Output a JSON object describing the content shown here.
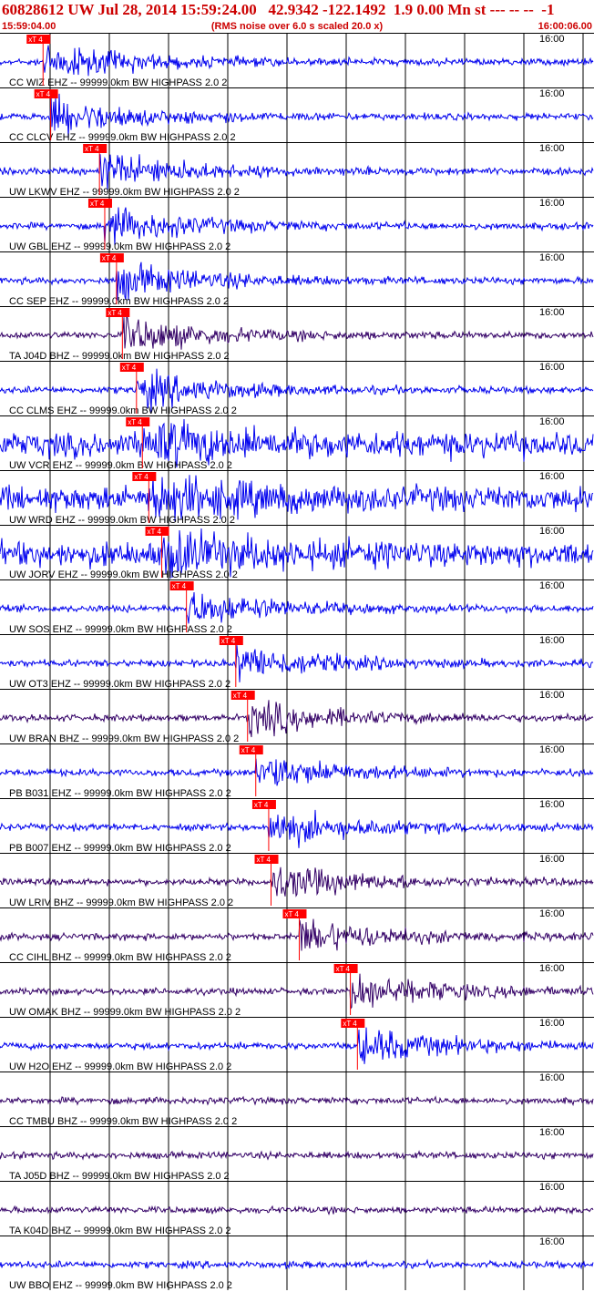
{
  "header": {
    "title": "60828612 UW Jul 28, 2014 15:59:24.00   42.9342 -122.1492  1.9 0.00 Mn st --- -- --  -1",
    "start_time": "15:59:04.00",
    "note": "(RMS noise over 6.0 s scaled 20.0 x)",
    "end_time": "16:00:06.00"
  },
  "colors": {
    "header_text": "#cc0000",
    "trace_blue": "#0000ee",
    "trace_dark": "#330066",
    "pick": "#ff0000",
    "grid": "#000000"
  },
  "pick_label": "xT 4",
  "tick_label": "16:00",
  "traces": [
    {
      "label": "CC WIZ EHZ -- 99999.0km BW  HIGHPASS  2.0  2",
      "color": "blue",
      "pick": 0.5
    },
    {
      "label": "CC CLCV EHZ -- 99999.0km BW  HIGHPASS  2.0  2",
      "color": "blue",
      "pick": 0.63
    },
    {
      "label": "UW LKWV EHZ -- 99999.0km BW  HIGHPASS  2.0  2",
      "color": "blue",
      "pick": 1.46
    },
    {
      "label": "UW GBL EHZ -- 99999.0km BW  HIGHPASS  2.0  2",
      "color": "blue",
      "pick": 1.55
    },
    {
      "label": "CC SEP EHZ -- 99999.0km BW  HIGHPASS  2.0  2",
      "color": "blue",
      "pick": 1.75
    },
    {
      "label": "TA J04D BHZ -- 99999.0km BW  HIGHPASS  2.0  2",
      "color": "dark",
      "pick": 1.85
    },
    {
      "label": "CC CLMS EHZ -- 99999.0km BW  HIGHPASS  2.0  2",
      "color": "blue",
      "pick": 2.09
    },
    {
      "label": "UW VCR EHZ -- 99999.0km BW  HIGHPASS  2.0  2",
      "color": "blue",
      "pick": 2.19
    },
    {
      "label": "UW WRD EHZ -- 99999.0km BW  HIGHPASS  2.0  2",
      "color": "blue",
      "pick": 2.3
    },
    {
      "label": "UW JORV EHZ -- 99999.0km BW  HIGHPASS  2.0  2",
      "color": "blue",
      "pick": 2.52
    },
    {
      "label": "UW SOS EHZ -- 99999.0km BW  HIGHPASS  2.0  2",
      "color": "blue",
      "pick": 2.94
    },
    {
      "label": "UW OT3 EHZ -- 99999.0km BW  HIGHPASS  2.0  2",
      "color": "blue",
      "pick": 3.78
    },
    {
      "label": "UW BRAN BHZ -- 99999.0km BW  HIGHPASS  2.0  2",
      "color": "dark",
      "pick": 3.98
    },
    {
      "label": "PB B031 EHZ -- 99999.0km BW  HIGHPASS  2.0  2",
      "color": "blue",
      "pick": 4.12
    },
    {
      "label": "PB B007 EHZ -- 99999.0km BW  HIGHPASS  2.0  2",
      "color": "blue",
      "pick": 4.34
    },
    {
      "label": "UW LRIV BHZ -- 99999.0km BW  HIGHPASS  2.0  2",
      "color": "dark",
      "pick": 4.38
    },
    {
      "label": "CC CIHL BHZ -- 99999.0km BW  HIGHPASS  2.0  2",
      "color": "dark",
      "pick": 4.86
    },
    {
      "label": "UW OMAK BHZ -- 99999.0km BW  HIGHPASS  2.0  2",
      "color": "dark",
      "pick": 5.73
    },
    {
      "label": "UW H2O EHZ -- 99999.0km BW  HIGHPASS  2.0  2",
      "color": "blue",
      "pick": 5.85
    },
    {
      "label": "CC TMBU BHZ -- 99999.0km BW  HIGHPASS  2.0  2",
      "color": "dark",
      "pick": null
    },
    {
      "label": "TA J05D BHZ -- 99999.0km BW  HIGHPASS  2.0  2",
      "color": "dark",
      "pick": null
    },
    {
      "label": "TA K04D BHZ -- 99999.0km BW  HIGHPASS  2.0  2",
      "color": "dark",
      "pick": null
    },
    {
      "label": "UW BBO EHZ -- 99999.0km BW  HIGHPASS  2.0  2",
      "color": "blue",
      "pick": null
    }
  ]
}
